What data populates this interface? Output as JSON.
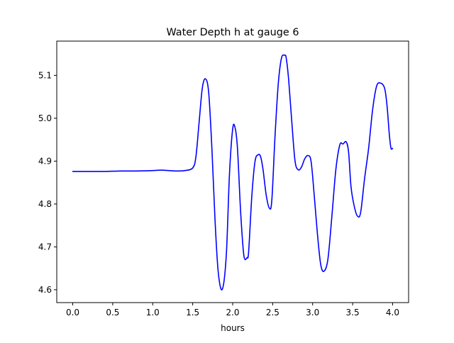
{
  "chart_data": {
    "type": "line",
    "title": "Water Depth h at gauge 6",
    "xlabel": "hours",
    "ylabel": "",
    "xlim": [
      -0.2,
      4.2
    ],
    "ylim": [
      4.57,
      5.18
    ],
    "grid": false,
    "x_ticks": [
      0.0,
      0.5,
      1.0,
      1.5,
      2.0,
      2.5,
      3.0,
      3.5,
      4.0
    ],
    "x_tick_labels": [
      "0.0",
      "0.5",
      "1.0",
      "1.5",
      "2.0",
      "2.5",
      "3.0",
      "3.5",
      "4.0"
    ],
    "y_ticks": [
      4.6,
      4.7,
      4.8,
      4.9,
      5.0,
      5.1
    ],
    "y_tick_labels": [
      "4.6",
      "4.7",
      "4.8",
      "4.9",
      "5.0",
      "5.1"
    ],
    "series": [
      {
        "color": "#0000ff",
        "x": [
          0.0,
          0.2,
          0.4,
          0.6,
          0.8,
          1.0,
          1.1,
          1.2,
          1.3,
          1.4,
          1.5,
          1.54,
          1.58,
          1.62,
          1.66,
          1.7,
          1.74,
          1.78,
          1.82,
          1.87,
          1.92,
          1.96,
          2.0,
          2.03,
          2.06,
          2.1,
          2.14,
          2.18,
          2.2,
          2.24,
          2.28,
          2.32,
          2.35,
          2.38,
          2.42,
          2.46,
          2.49,
          2.53,
          2.57,
          2.61,
          2.65,
          2.67,
          2.7,
          2.74,
          2.78,
          2.82,
          2.86,
          2.9,
          2.94,
          2.98,
          3.02,
          3.06,
          3.1,
          3.14,
          3.19,
          3.24,
          3.29,
          3.34,
          3.38,
          3.42,
          3.45,
          3.48,
          3.52,
          3.56,
          3.6,
          3.65,
          3.7,
          3.75,
          3.8,
          3.85,
          3.9,
          3.93,
          3.96,
          3.98,
          4.0
        ],
        "y": [
          4.876,
          4.876,
          4.876,
          4.877,
          4.877,
          4.878,
          4.879,
          4.878,
          4.877,
          4.878,
          4.884,
          4.91,
          4.99,
          5.07,
          5.092,
          5.06,
          4.93,
          4.76,
          4.64,
          4.601,
          4.68,
          4.87,
          4.975,
          4.978,
          4.93,
          4.78,
          4.68,
          4.675,
          4.69,
          4.82,
          4.9,
          4.915,
          4.91,
          4.88,
          4.82,
          4.79,
          4.81,
          4.96,
          5.08,
          5.14,
          5.147,
          5.14,
          5.09,
          4.99,
          4.9,
          4.88,
          4.886,
          4.905,
          4.913,
          4.9,
          4.82,
          4.73,
          4.66,
          4.643,
          4.67,
          4.77,
          4.88,
          4.938,
          4.94,
          4.945,
          4.92,
          4.84,
          4.795,
          4.772,
          4.78,
          4.86,
          4.93,
          5.02,
          5.075,
          5.082,
          5.07,
          5.03,
          4.96,
          4.93,
          4.93
        ]
      }
    ]
  }
}
